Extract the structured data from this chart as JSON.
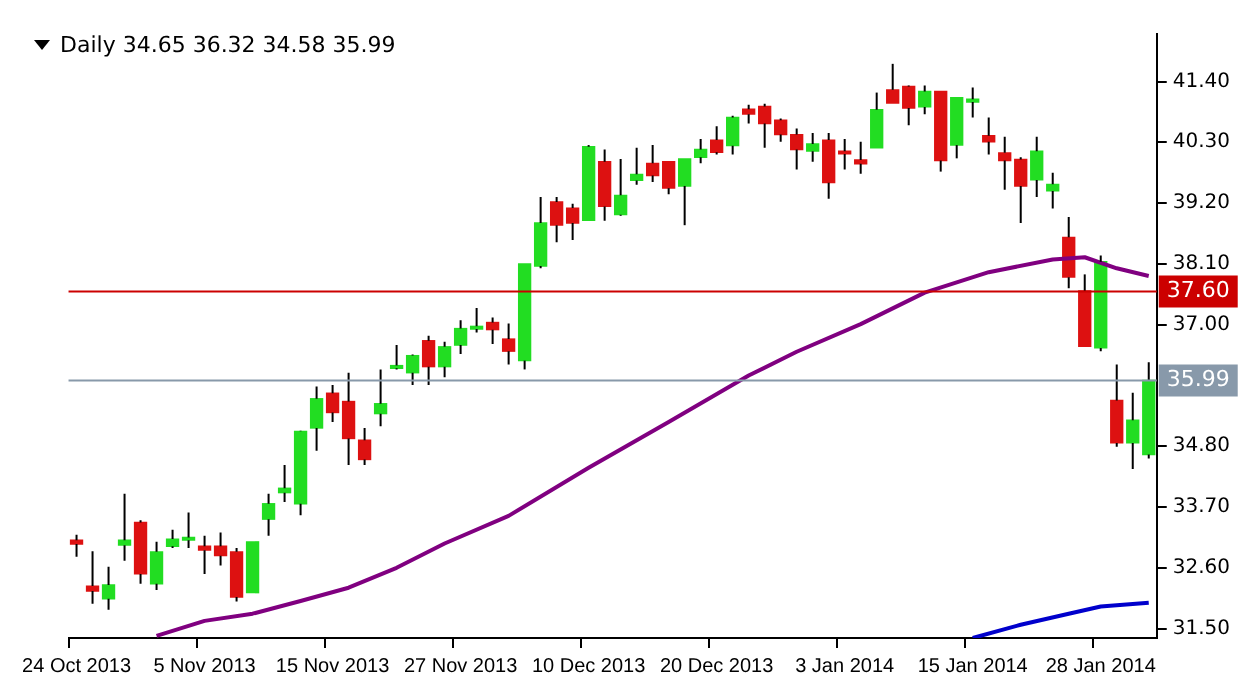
{
  "chart_data": {
    "type": "candlestick",
    "title": "Daily  34.65 36.32 34.58 35.99",
    "categories": [
      "24 Oct 2013",
      null,
      null,
      null,
      null,
      null,
      null,
      null,
      "5 Nov 2013",
      null,
      null,
      null,
      null,
      null,
      null,
      null,
      "15 Nov 2013",
      null,
      null,
      null,
      null,
      null,
      null,
      null,
      "27 Nov 2013",
      null,
      null,
      null,
      null,
      null,
      null,
      null,
      "10 Dec 2013",
      null,
      null,
      null,
      null,
      null,
      null,
      null,
      "20 Dec 2013",
      null,
      null,
      null,
      null,
      null,
      null,
      null,
      "3 Jan 2014",
      null,
      null,
      null,
      null,
      null,
      null,
      null,
      "15 Jan 2014",
      null,
      null,
      null,
      null,
      null,
      null,
      null,
      "28 Jan 2014",
      null,
      null,
      null
    ],
    "ohlc": [
      [
        33.1,
        33.2,
        32.8,
        33.03
      ],
      [
        32.27,
        32.9,
        31.95,
        32.18
      ],
      [
        32.04,
        32.62,
        31.84,
        32.29
      ],
      [
        33.01,
        33.94,
        32.73,
        33.1
      ],
      [
        33.42,
        33.46,
        32.31,
        32.49
      ],
      [
        32.31,
        33.07,
        32.2,
        32.89
      ],
      [
        32.99,
        33.29,
        32.96,
        33.12
      ],
      [
        33.1,
        33.6,
        32.96,
        33.15
      ],
      [
        32.99,
        33.18,
        32.49,
        32.92
      ],
      [
        32.99,
        33.24,
        32.64,
        32.82
      ],
      [
        32.89,
        32.96,
        31.99,
        32.07
      ],
      [
        32.15,
        33.07,
        32.15,
        33.07
      ],
      [
        33.48,
        33.94,
        33.18,
        33.76
      ],
      [
        33.96,
        34.46,
        33.79,
        34.04
      ],
      [
        33.76,
        35.08,
        33.55,
        35.07
      ],
      [
        35.13,
        35.88,
        34.72,
        35.66
      ],
      [
        35.76,
        35.91,
        35.24,
        35.41
      ],
      [
        35.61,
        36.13,
        34.46,
        34.94
      ],
      [
        34.91,
        35.13,
        34.46,
        34.56
      ],
      [
        35.39,
        36.19,
        35.16,
        35.57
      ],
      [
        36.21,
        36.63,
        36.19,
        36.26
      ],
      [
        36.13,
        36.46,
        35.91,
        36.44
      ],
      [
        36.71,
        36.8,
        35.91,
        36.24
      ],
      [
        36.24,
        36.69,
        36.05,
        36.6
      ],
      [
        36.63,
        37.08,
        36.47,
        36.93
      ],
      [
        36.92,
        37.3,
        36.86,
        36.97
      ],
      [
        37.04,
        37.13,
        36.65,
        36.91
      ],
      [
        36.74,
        37.02,
        36.28,
        36.52
      ],
      [
        36.35,
        38.1,
        36.19,
        38.1
      ],
      [
        38.06,
        39.31,
        38.02,
        38.84
      ],
      [
        39.22,
        39.31,
        38.49,
        38.8
      ],
      [
        39.11,
        39.19,
        38.53,
        38.84
      ],
      [
        38.89,
        40.25,
        38.89,
        40.22
      ],
      [
        39.95,
        40.17,
        38.88,
        39.14
      ],
      [
        38.99,
        40.0,
        38.97,
        39.34
      ],
      [
        39.61,
        40.2,
        39.53,
        39.72
      ],
      [
        39.92,
        40.25,
        39.58,
        39.7
      ],
      [
        39.95,
        39.95,
        39.36,
        39.47
      ],
      [
        39.51,
        40.0,
        38.8,
        40.0
      ],
      [
        40.03,
        40.36,
        39.92,
        40.17
      ],
      [
        40.34,
        40.59,
        40.08,
        40.12
      ],
      [
        40.24,
        40.78,
        40.08,
        40.75
      ],
      [
        40.9,
        40.98,
        40.64,
        40.81
      ],
      [
        40.95,
        41.0,
        40.2,
        40.64
      ],
      [
        40.7,
        40.73,
        40.31,
        40.44
      ],
      [
        40.44,
        40.55,
        39.81,
        40.17
      ],
      [
        40.14,
        40.47,
        39.95,
        40.27
      ],
      [
        40.34,
        40.47,
        39.28,
        39.57
      ],
      [
        40.14,
        40.36,
        39.81,
        40.09
      ],
      [
        39.98,
        40.31,
        39.73,
        39.91
      ],
      [
        40.2,
        41.2,
        40.2,
        40.89
      ],
      [
        41.25,
        41.72,
        41.01,
        41.01
      ],
      [
        41.31,
        41.33,
        40.61,
        40.92
      ],
      [
        40.94,
        41.33,
        40.81,
        41.22
      ],
      [
        41.22,
        41.22,
        39.77,
        39.97
      ],
      [
        40.25,
        41.11,
        40.01,
        41.11
      ],
      [
        41.03,
        41.29,
        40.75,
        41.08
      ],
      [
        40.42,
        40.75,
        40.08,
        40.31
      ],
      [
        40.11,
        40.4,
        39.44,
        39.97
      ],
      [
        39.99,
        40.03,
        38.84,
        39.51
      ],
      [
        39.62,
        40.4,
        39.31,
        40.14
      ],
      [
        39.42,
        39.75,
        39.1,
        39.54
      ],
      [
        38.58,
        38.95,
        37.66,
        37.86
      ],
      [
        37.61,
        37.91,
        36.61,
        36.61
      ],
      [
        36.58,
        38.25,
        36.52,
        38.14
      ],
      [
        35.63,
        36.28,
        34.79,
        34.86
      ],
      [
        34.86,
        35.77,
        34.39,
        35.27
      ],
      [
        34.65,
        36.32,
        34.58,
        35.99
      ]
    ],
    "colors": [
      "#dd1111",
      "#dd1111",
      "#22dd22",
      "#22dd22",
      "#dd1111",
      "#22dd22",
      "#22dd22",
      "#22dd22",
      "#dd1111",
      "#dd1111",
      "#dd1111",
      "#22dd22",
      "#22dd22",
      "#22dd22",
      "#22dd22",
      "#22dd22",
      "#dd1111",
      "#dd1111",
      "#dd1111",
      "#22dd22",
      "#22dd22",
      "#22dd22",
      "#dd1111",
      "#22dd22",
      "#22dd22",
      "#22dd22",
      "#dd1111",
      "#dd1111",
      "#22dd22",
      "#22dd22",
      "#dd1111",
      "#dd1111",
      "#22dd22",
      "#dd1111",
      "#22dd22",
      "#22dd22",
      "#dd1111",
      "#dd1111",
      "#22dd22",
      "#22dd22",
      "#dd1111",
      "#22dd22",
      "#dd1111",
      "#dd1111",
      "#dd1111",
      "#dd1111",
      "#22dd22",
      "#dd1111",
      "#dd1111",
      "#dd1111",
      "#22dd22",
      "#dd1111",
      "#dd1111",
      "#22dd22",
      "#dd1111",
      "#22dd22",
      "#22dd22",
      "#dd1111",
      "#dd1111",
      "#dd1111",
      "#22dd22",
      "#22dd22",
      "#dd1111",
      "#dd1111",
      "#22dd22",
      "#dd1111",
      "#22dd22",
      "#22dd22"
    ],
    "series": [
      {
        "type": "line",
        "color": "#800080",
        "values": [
          null,
          null,
          null,
          null,
          null,
          31.37,
          null,
          null,
          31.64,
          null,
          null,
          31.77,
          null,
          null,
          32.0,
          null,
          null,
          32.24,
          null,
          null,
          32.6,
          null,
          null,
          33.04,
          null,
          null,
          null,
          33.54,
          null,
          null,
          null,
          null,
          34.41,
          null,
          null,
          null,
          null,
          35.24,
          null,
          null,
          null,
          null,
          36.08,
          null,
          null,
          36.51,
          null,
          null,
          null,
          37.01,
          null,
          null,
          null,
          37.58,
          null,
          null,
          null,
          37.95,
          null,
          null,
          null,
          38.18,
          null,
          38.22,
          null,
          38.02,
          null,
          37.88
        ]
      },
      {
        "type": "line",
        "color": "#0000cc",
        "values": [
          null,
          null,
          null,
          null,
          null,
          null,
          null,
          null,
          null,
          null,
          null,
          null,
          null,
          null,
          null,
          null,
          null,
          null,
          null,
          null,
          null,
          null,
          null,
          null,
          null,
          null,
          null,
          null,
          null,
          null,
          null,
          null,
          null,
          null,
          null,
          null,
          null,
          null,
          null,
          null,
          null,
          null,
          null,
          null,
          null,
          null,
          null,
          null,
          null,
          null,
          null,
          null,
          null,
          null,
          null,
          null,
          31.33,
          null,
          null,
          31.57,
          null,
          null,
          31.77,
          null,
          31.9,
          null,
          null,
          31.97
        ]
      }
    ],
    "ylim": [
      31.33,
      42.26
    ],
    "yticks": [
      {
        "value": 31.5,
        "label": "31.50"
      },
      {
        "value": 32.6,
        "label": "32.60"
      },
      {
        "value": 33.7,
        "label": "33.70"
      },
      {
        "value": 34.8,
        "label": "34.80"
      },
      {
        "value": 37.0,
        "label": "37.00"
      },
      {
        "value": 38.1,
        "label": "38.10"
      },
      {
        "value": 39.2,
        "label": "39.20"
      },
      {
        "value": 40.3,
        "label": "40.30"
      },
      {
        "value": 41.4,
        "label": "41.40"
      }
    ],
    "ref_lines": [
      {
        "axis": "y",
        "value": 37.6,
        "label": "37.60",
        "color": "#cc0000"
      },
      {
        "axis": "y",
        "value": 35.99,
        "label": "35.99",
        "color": "#8899aa"
      }
    ],
    "grid": false,
    "legend": false
  }
}
